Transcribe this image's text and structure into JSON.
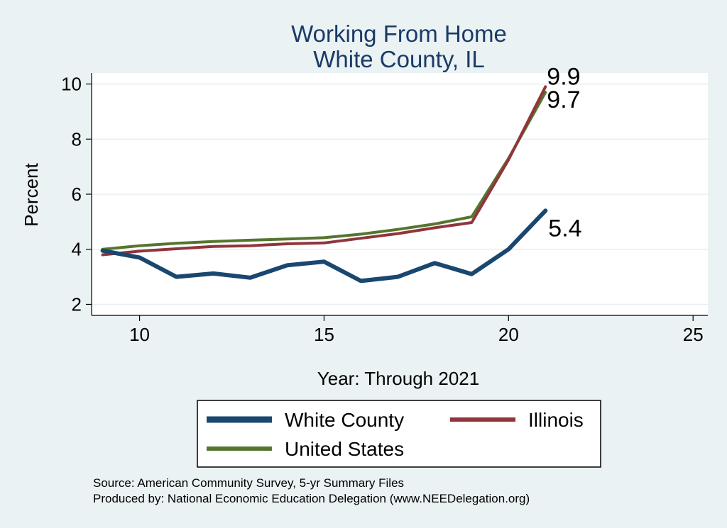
{
  "chart_data": {
    "type": "line",
    "title": "Working From Home",
    "subtitle": "White County, IL",
    "xlabel": "Year: Through 2021",
    "ylabel": "Percent",
    "xlim": [
      8.7,
      25.4
    ],
    "ylim": [
      1.6,
      10.4
    ],
    "xticks": [
      10,
      15,
      20,
      25
    ],
    "yticks": [
      2,
      4,
      6,
      8,
      10
    ],
    "x": [
      9,
      10,
      11,
      12,
      13,
      14,
      15,
      16,
      17,
      18,
      19,
      20,
      21
    ],
    "series": [
      {
        "name": "White County",
        "color": "#1a476f",
        "values": [
          3.95,
          3.7,
          3.0,
          3.12,
          2.97,
          3.42,
          3.55,
          2.85,
          3.0,
          3.5,
          3.1,
          4.0,
          5.4
        ],
        "end_label": "5.4"
      },
      {
        "name": "Illinois",
        "color": "#90353b",
        "values": [
          3.8,
          3.93,
          4.02,
          4.1,
          4.13,
          4.2,
          4.23,
          4.4,
          4.57,
          4.78,
          4.97,
          7.25,
          9.9
        ],
        "end_label": "9.9"
      },
      {
        "name": "United States",
        "color": "#55752f",
        "values": [
          4.0,
          4.13,
          4.22,
          4.28,
          4.33,
          4.37,
          4.42,
          4.55,
          4.72,
          4.92,
          5.18,
          7.3,
          9.7
        ],
        "end_label": "9.7"
      }
    ],
    "legend": {
      "position": "bottom",
      "items": [
        "White County",
        "Illinois",
        "United States"
      ]
    },
    "grid": true
  },
  "footer": {
    "source": "Source: American Community Survey, 5-yr Summary Files",
    "produced_by": "Produced by: National Economic Education Delegation (www.NEEDelegation.org)"
  },
  "colors": {
    "background": "#eaf2f3",
    "plot_background": "#ffffff",
    "gridline": "#e8eef0",
    "title": "#1b3a66"
  }
}
